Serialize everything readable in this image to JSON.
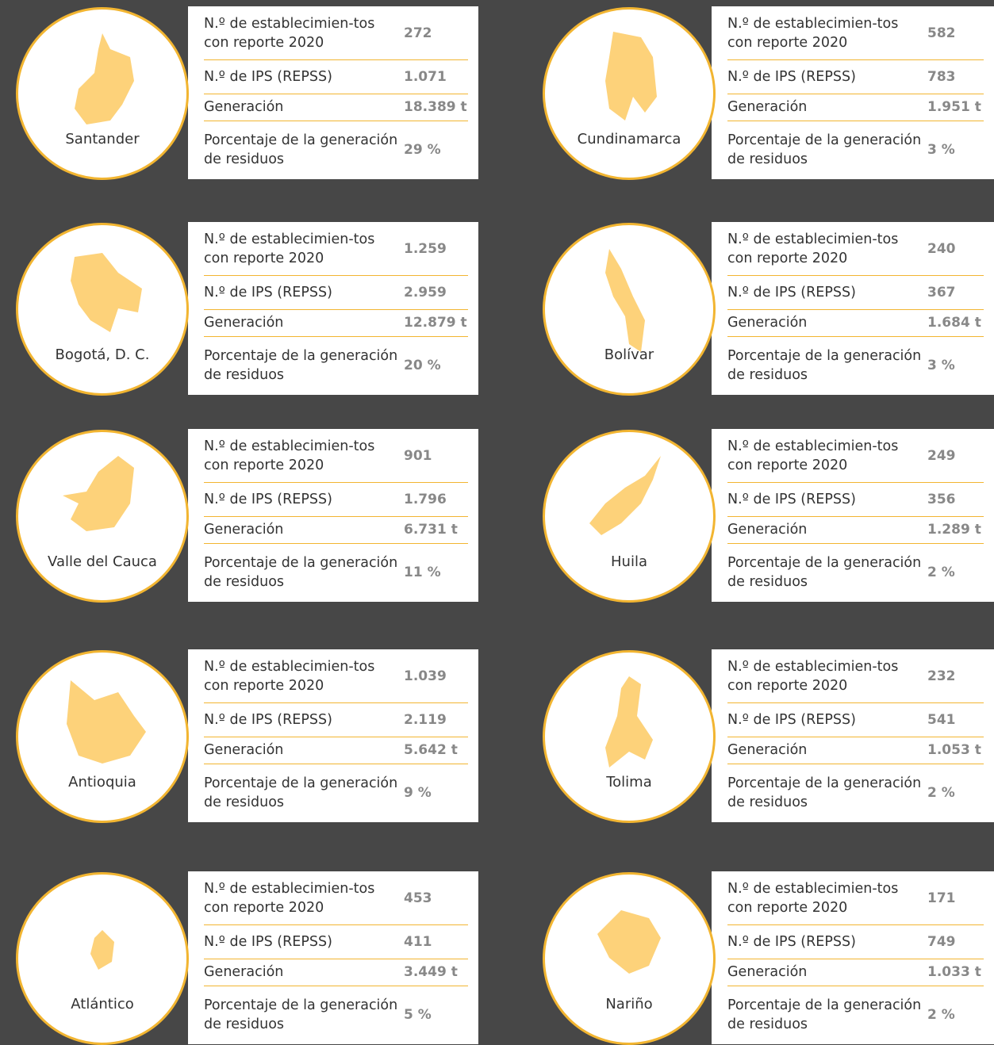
{
  "cards": [
    {
      "name": "Santander",
      "rows": [
        {
          "label": "N.º de establecimien-tos con reporte 2020",
          "value": "272"
        },
        {
          "label": "N.º de IPS (REPSS)",
          "value": "1.071"
        },
        {
          "label": "Generación",
          "value": "18.389 t"
        },
        {
          "label": "Porcentaje de la generación de residuos",
          "value": "29 %"
        }
      ]
    },
    {
      "name": "Cundinamarca",
      "rows": [
        {
          "label": "N.º de establecimien-tos con reporte 2020",
          "value": "582"
        },
        {
          "label": "N.º de IPS (REPSS)",
          "value": "783"
        },
        {
          "label": "Generación",
          "value": "1.951 t"
        },
        {
          "label": "Porcentaje de la generación de residuos",
          "value": "3 %"
        }
      ]
    },
    {
      "name": "Bogotá, D. C.",
      "rows": [
        {
          "label": "N.º de establecimien-tos con reporte 2020",
          "value": "1.259"
        },
        {
          "label": "N.º de IPS (REPSS)",
          "value": "2.959"
        },
        {
          "label": "Generación",
          "value": "12.879 t"
        },
        {
          "label": "Porcentaje de la generación de residuos",
          "value": "20 %"
        }
      ]
    },
    {
      "name": "Bolívar",
      "rows": [
        {
          "label": "N.º de establecimien-tos con reporte 2020",
          "value": "240"
        },
        {
          "label": "N.º de IPS (REPSS)",
          "value": "367"
        },
        {
          "label": "Generación",
          "value": "1.684 t"
        },
        {
          "label": "Porcentaje de la generación de residuos",
          "value": "3 %"
        }
      ]
    },
    {
      "name": "Valle del Cauca",
      "rows": [
        {
          "label": "N.º de establecimien-tos con reporte 2020",
          "value": "901"
        },
        {
          "label": "N.º de IPS (REPSS)",
          "value": "1.796"
        },
        {
          "label": "Generación",
          "value": "6.731 t"
        },
        {
          "label": "Porcentaje de la generación de residuos",
          "value": "11 %"
        }
      ]
    },
    {
      "name": "Huila",
      "rows": [
        {
          "label": "N.º de establecimien-tos con reporte 2020",
          "value": "249"
        },
        {
          "label": "N.º de IPS (REPSS)",
          "value": "356"
        },
        {
          "label": "Generación",
          "value": "1.289 t"
        },
        {
          "label": "Porcentaje de la generación de residuos",
          "value": "2 %"
        }
      ]
    },
    {
      "name": "Antioquia",
      "rows": [
        {
          "label": "N.º de establecimien-tos con reporte 2020",
          "value": "1.039"
        },
        {
          "label": "N.º de IPS (REPSS)",
          "value": "2.119"
        },
        {
          "label": "Generación",
          "value": "5.642 t"
        },
        {
          "label": "Porcentaje de la generación de residuos",
          "value": "9 %"
        }
      ]
    },
    {
      "name": "Tolima",
      "rows": [
        {
          "label": "N.º de establecimien-tos con reporte 2020",
          "value": "232"
        },
        {
          "label": "N.º de IPS (REPSS)",
          "value": "541"
        },
        {
          "label": "Generación",
          "value": "1.053 t"
        },
        {
          "label": "Porcentaje de la generación de residuos",
          "value": "2 %"
        }
      ]
    },
    {
      "name": "Atlántico",
      "rows": [
        {
          "label": "N.º de establecimien-tos con reporte 2020",
          "value": "453"
        },
        {
          "label": "N.º de IPS (REPSS)",
          "value": "411"
        },
        {
          "label": "Generación",
          "value": "3.449 t"
        },
        {
          "label": "Porcentaje de la generación de residuos",
          "value": "5 %"
        }
      ]
    },
    {
      "name": "Nariño",
      "rows": [
        {
          "label": "N.º de establecimien-tos con reporte 2020",
          "value": "171"
        },
        {
          "label": "N.º de IPS (REPSS)",
          "value": "749"
        },
        {
          "label": "Generación",
          "value": "1.033 t"
        },
        {
          "label": "Porcentaje de la generación de residuos",
          "value": "2 %"
        }
      ]
    }
  ]
}
